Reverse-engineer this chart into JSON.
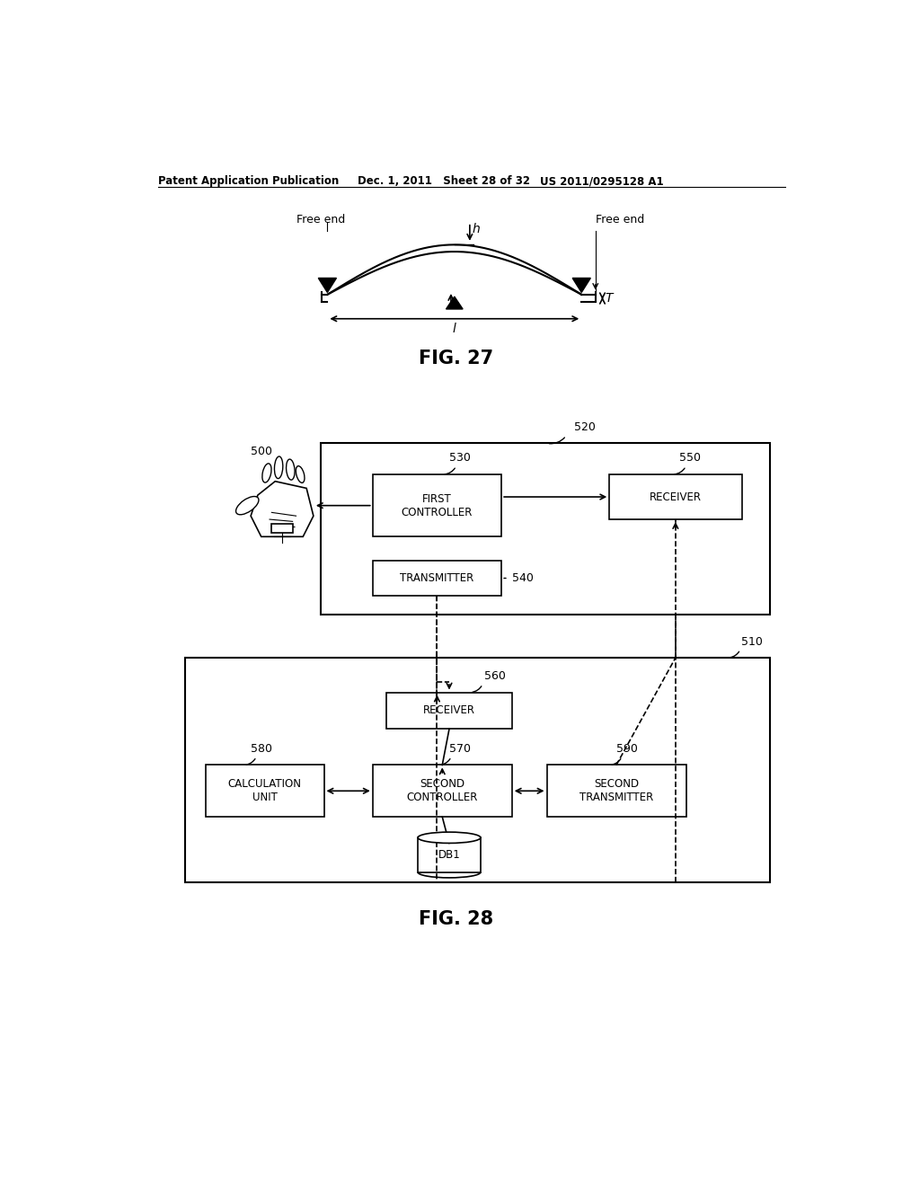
{
  "bg_color": "#ffffff",
  "text_color": "#000000",
  "header_left": "Patent Application Publication",
  "header_mid": "Dec. 1, 2011   Sheet 28 of 32",
  "header_right": "US 2011/0295128 A1",
  "fig27_label": "FIG. 27",
  "fig28_label": "FIG. 28",
  "label_h": "h",
  "label_l": "l",
  "label_T": "T",
  "label_free_end_left": "Free end",
  "label_free_end_right": "Free end",
  "label_500": "500",
  "label_510": "510",
  "label_520": "520",
  "label_530": "530",
  "label_540": "540",
  "label_550": "550",
  "label_560": "560",
  "label_570": "570",
  "label_580": "580",
  "label_590": "590",
  "box_first_controller": "FIRST\nCONTROLLER",
  "box_transmitter": "TRANSMITTER",
  "box_receiver_top": "RECEIVER",
  "box_receiver_bottom": "RECEIVER",
  "box_second_controller": "SECOND\nCONTROLLER",
  "box_calculation": "CALCULATION\nUNIT",
  "box_second_transmitter": "SECOND\nTRANSMITTER",
  "box_db": "DB1"
}
